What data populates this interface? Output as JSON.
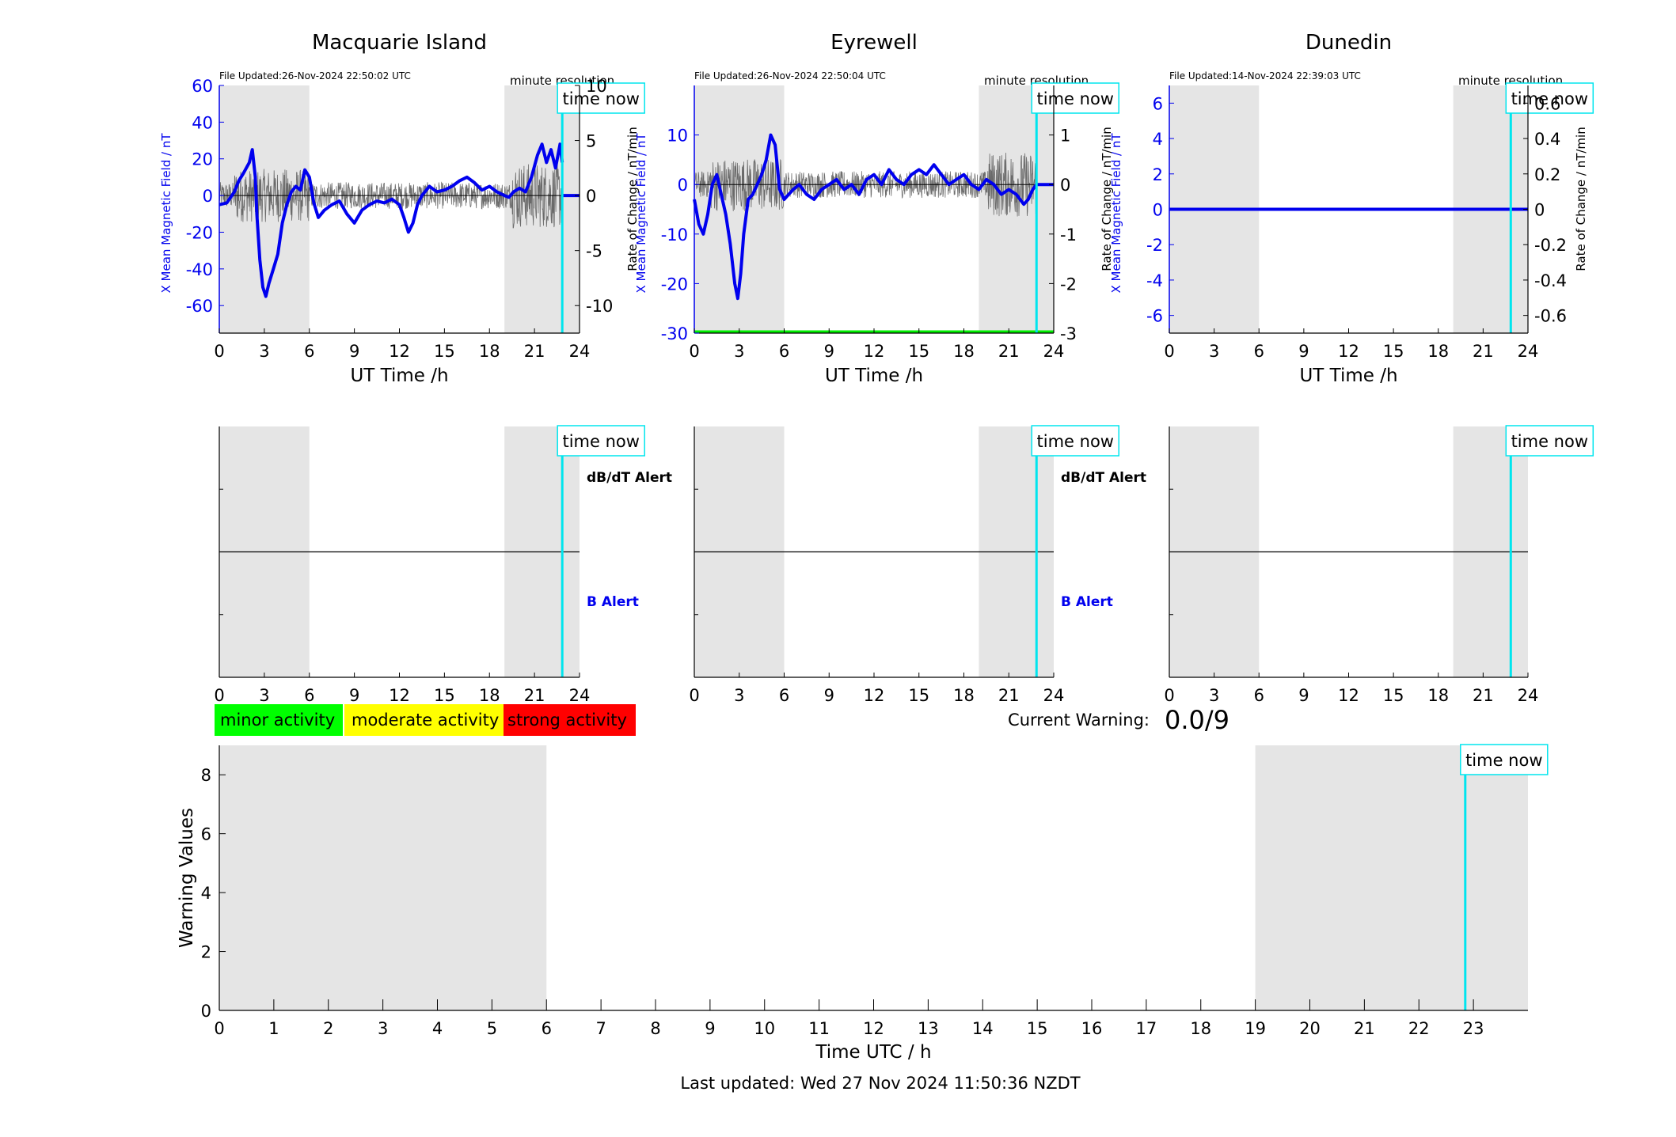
{
  "colors": {
    "background": "#ffffff",
    "night_shade": "#e5e5e5",
    "field_line": "#0000ee",
    "rate_line": "#555555",
    "time_now": "#00e5ee",
    "minor": "#00ff00",
    "moderate": "#ffff00",
    "strong": "#ff0000",
    "b_alert_text": "#0000ee"
  },
  "labels": {
    "time_now": "time now",
    "x_axis_ut": "UT Time /h",
    "y_left": "X Mean Magnetic Field / nT",
    "y_right": "Rate of Change / nT/min",
    "minute_resolution": "minute resolution",
    "dbdt_alert": "dB/dT Alert",
    "b_alert": "B Alert",
    "minor_activity": "minor activity",
    "moderate_activity": "moderate activity",
    "strong_activity": "strong activity",
    "current_warning_label": "Current Warning:",
    "current_warning_value": "0.0/9",
    "warning_x_label": "Time UTC / h",
    "warning_y_label": "Warning Values",
    "last_updated": "Last updated: Wed 27 Nov 2024 11:50:36 NZDT"
  },
  "stations": [
    {
      "name": "Macquarie Island",
      "file_updated": "File Updated:26-Nov-2024 22:50:02 UTC",
      "show_minute_resolution": true,
      "show_alert_labels": true
    },
    {
      "name": "Eyrewell",
      "file_updated": "File Updated:26-Nov-2024 22:50:04 UTC",
      "show_minute_resolution": true,
      "show_alert_labels": true
    },
    {
      "name": "Dunedin",
      "file_updated": "File Updated:14-Nov-2024 22:39:03 UTC",
      "show_minute_resolution": true,
      "show_alert_labels": false
    }
  ],
  "chart_data": [
    {
      "type": "line",
      "title": "Macquarie Island",
      "xlabel": "UT Time /h",
      "ylabel": "X Mean Magnetic Field / nT",
      "y2label": "Rate of Change / nT/min",
      "xlim": [
        0,
        24
      ],
      "ylim": [
        -75,
        60
      ],
      "y2lim": [
        -12.5,
        10
      ],
      "xticks": [
        0,
        3,
        6,
        9,
        12,
        15,
        18,
        21,
        24
      ],
      "yticks": [
        -60,
        -40,
        -20,
        0,
        20,
        40,
        60
      ],
      "y2ticks": [
        -10,
        -5,
        0,
        5,
        10
      ],
      "night_shade": [
        [
          0,
          6
        ],
        [
          19,
          24
        ]
      ],
      "time_now": 22.85,
      "series": [
        {
          "axis": "left",
          "x": [
            0,
            0.5,
            1,
            1.3,
            1.6,
            2,
            2.2,
            2.4,
            2.5,
            2.7,
            2.9,
            3.1,
            3.3,
            3.6,
            3.9,
            4.2,
            4.5,
            4.8,
            5.1,
            5.4,
            5.7,
            6,
            6.3,
            6.6,
            7,
            7.5,
            8,
            8.5,
            9,
            9.5,
            10,
            10.5,
            11,
            11.5,
            12,
            12.3,
            12.6,
            12.9,
            13.2,
            13.5,
            14,
            14.5,
            15,
            15.5,
            16,
            16.5,
            17,
            17.5,
            18,
            18.5,
            19,
            19.3,
            19.6,
            20,
            20.4,
            20.8,
            21.2,
            21.5,
            21.8,
            22.1,
            22.4,
            22.7,
            22.85
          ],
          "y": [
            -5,
            -4,
            2,
            8,
            12,
            18,
            25,
            10,
            -10,
            -35,
            -50,
            -55,
            -48,
            -40,
            -32,
            -15,
            -5,
            2,
            5,
            3,
            14,
            10,
            -4,
            -12,
            -8,
            -5,
            -3,
            -10,
            -15,
            -8,
            -5,
            -3,
            -4,
            -2,
            -5,
            -12,
            -20,
            -15,
            -5,
            0,
            5,
            2,
            3,
            5,
            8,
            10,
            7,
            3,
            5,
            2,
            0,
            -1,
            2,
            4,
            2,
            10,
            22,
            28,
            18,
            25,
            15,
            28,
            18
          ]
        },
        {
          "axis": "left",
          "x": [
            22.85,
            24
          ],
          "y": [
            0,
            0
          ]
        }
      ]
    },
    {
      "type": "line",
      "title": "Eyrewell",
      "xlabel": "UT Time /h",
      "ylabel": "X Mean Magnetic Field / nT",
      "y2label": "Rate of Change / nT/min",
      "xlim": [
        0,
        24
      ],
      "ylim": [
        -30,
        20
      ],
      "y2lim": [
        -3,
        2
      ],
      "xticks": [
        0,
        3,
        6,
        9,
        12,
        15,
        18,
        21,
        24
      ],
      "yticks": [
        -30,
        -20,
        -10,
        0,
        10
      ],
      "y2ticks": [
        -3,
        -2,
        -1,
        0,
        1
      ],
      "night_shade": [
        [
          0,
          6
        ],
        [
          19,
          24
        ]
      ],
      "time_now": 22.85,
      "series": [
        {
          "axis": "left",
          "x": [
            0,
            0.3,
            0.6,
            0.9,
            1.2,
            1.5,
            1.8,
            2.1,
            2.4,
            2.7,
            2.9,
            3.1,
            3.3,
            3.6,
            3.9,
            4.2,
            4.5,
            4.8,
            5.1,
            5.4,
            5.7,
            6,
            6.3,
            6.6,
            7,
            7.5,
            8,
            8.5,
            9,
            9.5,
            10,
            10.5,
            11,
            11.5,
            12,
            12.5,
            13,
            13.5,
            14,
            14.5,
            15,
            15.5,
            16,
            16.5,
            17,
            17.5,
            18,
            18.5,
            19,
            19.5,
            20,
            20.5,
            21,
            21.5,
            22,
            22.3,
            22.6,
            22.85
          ],
          "y": [
            -3,
            -8,
            -10,
            -6,
            0,
            2,
            -2,
            -6,
            -12,
            -20,
            -23,
            -18,
            -10,
            -3,
            -2,
            0,
            2,
            5,
            10,
            8,
            -1,
            -3,
            -2,
            -1,
            0,
            -2,
            -3,
            -1,
            0,
            1,
            -1,
            0,
            -2,
            1,
            2,
            0,
            3,
            1,
            0,
            2,
            3,
            2,
            4,
            2,
            0,
            1,
            2,
            0,
            -1,
            1,
            0,
            -2,
            -1,
            -2,
            -4,
            -3,
            -1,
            0
          ]
        },
        {
          "axis": "left",
          "x": [
            22.85,
            24
          ],
          "y": [
            0,
            0
          ]
        }
      ]
    },
    {
      "type": "line",
      "title": "Dunedin",
      "xlabel": "UT Time /h",
      "ylabel": "X Mean Magnetic Field / nT",
      "y2label": "Rate of Change / nT/min",
      "xlim": [
        0,
        24
      ],
      "ylim": [
        -7,
        7
      ],
      "y2lim": [
        -0.7,
        0.7
      ],
      "xticks": [
        0,
        3,
        6,
        9,
        12,
        15,
        18,
        21,
        24
      ],
      "yticks": [
        -6,
        -4,
        -2,
        0,
        2,
        4,
        6
      ],
      "y2ticks": [
        -0.6,
        -0.4,
        -0.2,
        0,
        0.2,
        0.4,
        0.6
      ],
      "y2ticklabels": [
        "-0.6",
        "-0.4",
        "-0.2",
        "0",
        "0.2",
        "0.4",
        "0.6"
      ],
      "night_shade": [
        [
          0,
          6
        ],
        [
          19,
          24
        ]
      ],
      "time_now": 22.85,
      "series": [
        {
          "axis": "left",
          "x": [
            0,
            24
          ],
          "y": [
            0,
            0
          ]
        }
      ]
    },
    {
      "type": "line",
      "title": "",
      "xlabel": "Time UTC / h",
      "ylabel": "Warning Values",
      "xlim": [
        0,
        24
      ],
      "ylim": [
        0,
        9
      ],
      "xticks": [
        0,
        1,
        2,
        3,
        4,
        5,
        6,
        7,
        8,
        9,
        10,
        11,
        12,
        13,
        14,
        15,
        16,
        17,
        18,
        19,
        20,
        21,
        22,
        23
      ],
      "yticks": [
        0,
        2,
        4,
        6,
        8
      ],
      "night_shade": [
        [
          0,
          6
        ],
        [
          19,
          24
        ]
      ],
      "time_now": 22.85,
      "series": []
    }
  ]
}
